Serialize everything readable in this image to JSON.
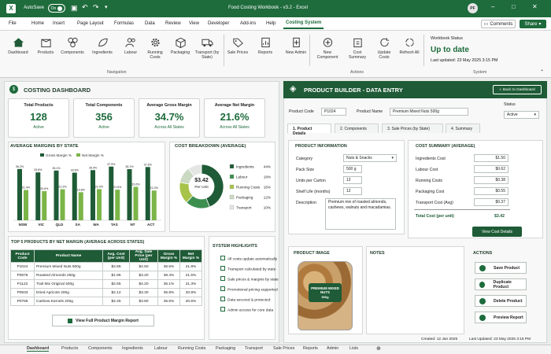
{
  "titlebar": {
    "autosave": "AutoSave",
    "toggle": "On",
    "title": "Food Costing Workbook - v3.2 - Excel",
    "user": "PF"
  },
  "menu": [
    "File",
    "Home",
    "Insert",
    "Page Layout",
    "Formulas",
    "Data",
    "Review",
    "View",
    "Developer",
    "Add-ins",
    "Help",
    "Costing System"
  ],
  "menu_right": {
    "comments": "Comments",
    "share": "Share"
  },
  "ribbon": {
    "buttons": [
      "Dashboard",
      "Products",
      "Components",
      "Ingredients",
      "Labour",
      "Running Costs",
      "Packaging",
      "Transport (by State)",
      "Sale Prices",
      "Reports",
      "New Admin",
      "New Component",
      "Cost Summary",
      "Update Costs",
      "Refresh All"
    ],
    "group_nav": "Navigation",
    "group_actions": "Actions",
    "group_system": "System",
    "status_title": "Workbook Status",
    "status_value": "Up to date",
    "status_updated": "Last updated: 23 May 2025 3:15 PM"
  },
  "dashboard": {
    "title": "COSTING DASHBOARD",
    "kpis": [
      {
        "title": "Total Products",
        "value": "128",
        "sub": "Active"
      },
      {
        "title": "Total Components",
        "value": "356",
        "sub": "Active"
      },
      {
        "title": "Average Gross Margin",
        "value": "34.7%",
        "sub": "Across All States"
      },
      {
        "title": "Average Net Margin",
        "value": "21.6%",
        "sub": "Across All States"
      }
    ],
    "margins_title": "AVERAGE MARGINS BY STATE",
    "breakdown_title": "COST BREAKDOWN (AVERAGE)",
    "donut_center": "$3.42",
    "donut_sub": "Per Unit",
    "top5_title": "TOP 5 PRODUCTS BY NET MARGIN (AVERAGE ACROSS STATES)",
    "top5_headers": [
      "Product Code",
      "Product Name",
      "Avg. Cost (per Unit)",
      "Avg. Sale Price (per Unit)",
      "Gross Margin %",
      "Net Margin %"
    ],
    "top5_rows": [
      [
        "P1024",
        "Premium Mixed Nuts 500g",
        "$2.85",
        "$4.50",
        "36.5%",
        "21.8%"
      ],
      [
        "P0876",
        "Roasted Almonds 250g",
        "$1.95",
        "$3.20",
        "38.4%",
        "21.5%"
      ],
      [
        "P1122",
        "Trail Mix Original 400g",
        "$2.65",
        "$4.20",
        "36.1%",
        "21.3%"
      ],
      [
        "P0933",
        "Dried Apricots 200g",
        "$2.12",
        "$3.30",
        "35.8%",
        "20.8%"
      ],
      [
        "P0765",
        "Cashew Kernels 200g",
        "$2.45",
        "$3.80",
        "35.5%",
        "20.6%"
      ]
    ],
    "view_button": "View Full Product Margin Report",
    "highlights_title": "SYSTEM HIGHLIGHTS",
    "highlights": [
      "All costs update automatically",
      "Transport calculated by state",
      "Sale prices & margins by state",
      "Promotional pricing supported",
      "Data secured & protected",
      "Admin access for core data"
    ]
  },
  "chart_data": [
    {
      "type": "bar",
      "title": "AVERAGE MARGINS BY STATE",
      "categories": [
        "NSW",
        "VIC",
        "QLD",
        "SA",
        "WA",
        "TAS",
        "NT",
        "ACT"
      ],
      "series": [
        {
          "name": "Gross Margin %",
          "values": [
            36.2,
            33.8,
            35.1,
            33.6,
            35.4,
            37.9,
            36.1,
            37.6
          ]
        },
        {
          "name": "Net Margin %",
          "values": [
            21.4,
            20.6,
            21.9,
            19.8,
            22.0,
            21.6,
            23.6,
            21.0
          ]
        }
      ],
      "labels": [
        "36.2%",
        "21.4%",
        "33.8%",
        "20.6%",
        "35.1%",
        "21.9%",
        "33.6%",
        "19.8%",
        "35.4%",
        "22.0%",
        "37.9%",
        "21.6%",
        "36.1%",
        "23.6%",
        "37.6%",
        "21.0%"
      ],
      "ylim": [
        0,
        40
      ],
      "legend": "top",
      "grid": false
    },
    {
      "type": "pie",
      "title": "COST BREAKDOWN (AVERAGE)",
      "categories": [
        "Ingredients",
        "Labour",
        "Running Costs",
        "Packaging",
        "Transport"
      ],
      "values": [
        44,
        18,
        16,
        12,
        10
      ],
      "labels": [
        "44%",
        "18%",
        "16%",
        "12%",
        "10%"
      ],
      "colors": [
        "#1e5b36",
        "#3d8f50",
        "#a7c34a",
        "#c9d9c2",
        "#e3e6e3"
      ],
      "legend": "right"
    }
  ],
  "builder": {
    "title": "PRODUCT BUILDER - DATA ENTRY",
    "back": "Back to Dashboard",
    "code_label": "Product Code",
    "code_value": "P1024",
    "name_label": "Product Name",
    "name_value": "Premium Mixed Nuts 500g",
    "status_label": "Status",
    "status_value": "Active",
    "tabs": [
      "1. Product Details",
      "2. Components",
      "3. Sale Prices (by State)",
      "4. Summary"
    ],
    "info_title": "PRODUCT INFORMATION",
    "info": [
      {
        "label": "Category",
        "value": "Nuts & Snacks"
      },
      {
        "label": "Pack Size",
        "value": "500 g"
      },
      {
        "label": "Units per Carton",
        "value": "12"
      },
      {
        "label": "Shelf Life (months)",
        "value": "12"
      }
    ],
    "desc_label": "Description",
    "desc_value": "Premium mix of roasted almonds, cashews, walnuts and macadamias.",
    "summary_title": "COST SUMMARY (AVERAGE)",
    "summary": [
      {
        "label": "Ingredients Cost",
        "value": "$1.50"
      },
      {
        "label": "Labour Cost",
        "value": "$0.62"
      },
      {
        "label": "Running Costs",
        "value": "$0.38"
      },
      {
        "label": "Packaging Cost",
        "value": "$0.55"
      },
      {
        "label": "Transport Cost (Avg)",
        "value": "$0.37"
      }
    ],
    "total_label": "Total Cost (per unit)",
    "total_value": "$3.42",
    "view_cost": "View Cost Details",
    "image_title": "PRODUCT IMAGE",
    "notes_title": "NOTES",
    "actions_title": "ACTIONS",
    "bag_text": "PREMIUM MIXED NUTS",
    "bag_weight": "500g",
    "actions": [
      "Save Product",
      "Duplicate Product",
      "Delete Product",
      "Preview Report"
    ],
    "created": "Created: 12 Jan 2025",
    "updated": "Last Updated: 23 May 2025 3:15 PM"
  },
  "sheets": [
    "Dashboard",
    "Products",
    "Components",
    "Ingredients",
    "Labour",
    "Running Costs",
    "Packaging",
    "Transport",
    "Sale Prices",
    "Reports",
    "Admin",
    "Lists"
  ]
}
